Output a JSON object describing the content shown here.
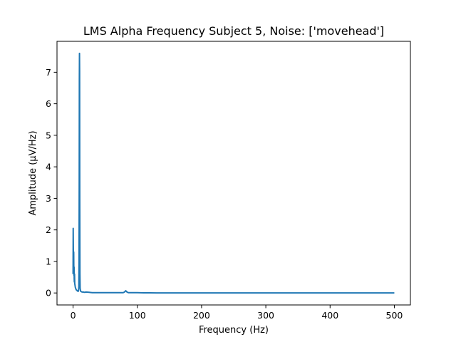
{
  "chart_data": {
    "type": "line",
    "title": "LMS Alpha Frequency Subject 5, Noise: ['movehead']",
    "xlabel": "Frequency (Hz)",
    "ylabel": "Amplitude (μV/Hz)",
    "xlim": [
      -25,
      525
    ],
    "ylim": [
      -0.38,
      7.98
    ],
    "xticks": [
      0,
      100,
      200,
      300,
      400,
      500
    ],
    "yticks": [
      0,
      1,
      2,
      3,
      4,
      5,
      6,
      7
    ],
    "grid": false,
    "legend": "none",
    "series": [
      {
        "color": "#1f77b4",
        "x": [
          0,
          0.2,
          0.4,
          0.6,
          0.8,
          1.0,
          1.2,
          1.4,
          1.6,
          1.8,
          2.0,
          2.3,
          2.6,
          3.0,
          3.5,
          4.0,
          4.5,
          5.0,
          5.5,
          6.0,
          6.5,
          7.0,
          7.5,
          8.0,
          8.5,
          9.0,
          9.3,
          9.6,
          9.8,
          10.0,
          10.2,
          10.4,
          10.7,
          11.0,
          11.5,
          12.0,
          13.0,
          14.0,
          16.0,
          18.0,
          20.0,
          25.0,
          30.0,
          40.0,
          50.0,
          60.0,
          70.0,
          78.0,
          80.0,
          82.0,
          84.0,
          86.0,
          90.0,
          100.0,
          110.0,
          120.0,
          130.0,
          150.0,
          200.0,
          300.0,
          400.0,
          500.0
        ],
        "y": [
          0.6,
          2.05,
          1.5,
          1.1,
          0.95,
          1.3,
          0.7,
          0.55,
          0.82,
          0.45,
          0.35,
          0.6,
          0.3,
          0.25,
          0.18,
          0.15,
          0.12,
          0.1,
          0.09,
          0.08,
          0.07,
          0.06,
          0.06,
          0.05,
          0.08,
          0.2,
          1.0,
          3.5,
          6.8,
          7.6,
          7.0,
          3.0,
          0.6,
          0.15,
          0.08,
          0.05,
          0.04,
          0.03,
          0.03,
          0.02,
          0.03,
          0.02,
          0.01,
          0.01,
          0.01,
          0.01,
          0.01,
          0.01,
          0.03,
          0.07,
          0.03,
          0.01,
          0.01,
          0.01,
          0.005,
          0.005,
          0.0,
          0.0,
          0.0,
          0.0,
          0.0,
          0.0
        ]
      }
    ]
  }
}
